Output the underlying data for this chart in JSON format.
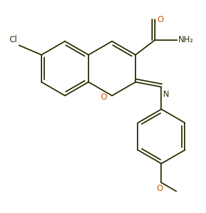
{
  "background_color": "#ffffff",
  "bond_color": "#2b2b00",
  "cl_color": "#2b2b00",
  "o_color": "#cc5500",
  "n_color": "#2b2b00",
  "lw": 1.3,
  "figsize": [
    2.98,
    3.08
  ],
  "dpi": 100,
  "xlim": [
    -0.3,
    6.5
  ],
  "ylim": [
    -1.8,
    6.0
  ]
}
